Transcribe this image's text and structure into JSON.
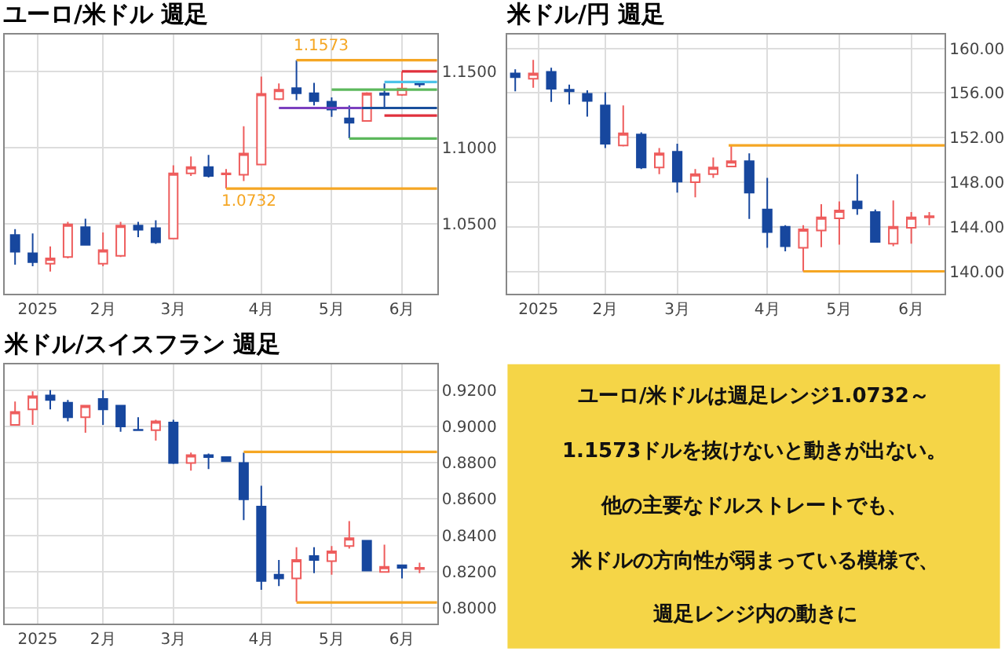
{
  "chart_data": [
    {
      "type": "candlestick",
      "title": "ユーロ/米ドル 週足",
      "x": [
        "2024-12-23",
        "2024-12-30",
        "2025-01-06",
        "2025-01-13",
        "2025-01-20",
        "2025-01-27",
        "2025-02-03",
        "2025-02-10",
        "2025-02-17",
        "2025-02-24",
        "2025-03-03",
        "2025-03-10",
        "2025-03-17",
        "2025-03-24",
        "2025-03-31",
        "2025-04-07",
        "2025-04-14",
        "2025-04-21",
        "2025-04-28",
        "2025-05-05",
        "2025-05-12",
        "2025-05-19",
        "2025-05-26",
        "2025-06-02"
      ],
      "ohlc": [
        [
          1.0428,
          1.0466,
          1.0233,
          1.0318
        ],
        [
          1.0308,
          1.0438,
          1.0223,
          1.025
        ],
        [
          1.024,
          1.0353,
          1.0188,
          1.0274
        ],
        [
          1.0284,
          1.0514,
          1.0274,
          1.0497
        ],
        [
          1.0479,
          1.0534,
          1.036,
          1.0363
        ],
        [
          1.024,
          1.0445,
          1.0223,
          1.0329
        ],
        [
          1.0291,
          1.0514,
          1.0284,
          1.049
        ],
        [
          1.049,
          1.0514,
          1.0414,
          1.0462
        ],
        [
          1.0473,
          1.0524,
          1.037,
          1.038
        ],
        [
          1.0404,
          1.0884,
          1.04,
          1.0832
        ],
        [
          1.0832,
          1.0942,
          1.0815,
          1.0873
        ],
        [
          1.0873,
          1.0952,
          1.0805,
          1.0815
        ],
        [
          1.0825,
          1.086,
          1.0732,
          1.0832
        ],
        [
          1.0822,
          1.114,
          1.0781,
          1.0962
        ],
        [
          1.089,
          1.1466,
          1.0885,
          1.1353
        ],
        [
          1.1318,
          1.1421,
          1.1312,
          1.138
        ],
        [
          1.139,
          1.1573,
          1.1312,
          1.1356
        ],
        [
          1.1356,
          1.1425,
          1.1277,
          1.1305
        ],
        [
          1.1301,
          1.1329,
          1.1202,
          1.125
        ],
        [
          1.1192,
          1.1277,
          1.1062,
          1.1164
        ],
        [
          1.1175,
          1.1363,
          1.117,
          1.1356
        ],
        [
          1.1356,
          1.1421,
          1.126,
          1.1346
        ],
        [
          1.1346,
          1.15,
          1.134,
          1.1387
        ],
        [
          1.1421,
          1.1432,
          1.1397,
          1.1414
        ]
      ],
      "series": [
        {
          "type": "line",
          "color": "#f5a623",
          "x": [
            "2025-04-14",
            "2025-06-09"
          ],
          "values": [
            1.1573,
            1.1573
          ]
        },
        {
          "type": "line",
          "color": "#f5a623",
          "x": [
            "2025-03-17",
            "2025-06-09"
          ],
          "values": [
            1.0732,
            1.0732
          ]
        },
        {
          "type": "line",
          "color": "#7b3fbf",
          "x": [
            "2025-04-07",
            "2025-05-10"
          ],
          "values": [
            1.126,
            1.126
          ]
        },
        {
          "type": "line",
          "color": "#1a4f9c",
          "x": [
            "2025-05-10",
            "2025-06-09"
          ],
          "values": [
            1.126,
            1.126
          ]
        },
        {
          "type": "line",
          "color": "#5cb85c",
          "x": [
            "2025-04-28",
            "2025-06-09"
          ],
          "values": [
            1.138,
            1.138
          ]
        },
        {
          "type": "line",
          "color": "#5cb85c",
          "x": [
            "2025-05-05",
            "2025-06-09"
          ],
          "values": [
            1.106,
            1.106
          ]
        },
        {
          "type": "line",
          "color": "#e0303c",
          "x": [
            "2025-05-26",
            "2025-06-09"
          ],
          "values": [
            1.15,
            1.15
          ]
        },
        {
          "type": "line",
          "color": "#e0303c",
          "x": [
            "2025-05-19",
            "2025-06-09"
          ],
          "values": [
            1.121,
            1.121
          ]
        },
        {
          "type": "line",
          "color": "#4dc3e8",
          "x": [
            "2025-05-19",
            "2025-06-09"
          ],
          "values": [
            1.143,
            1.143
          ]
        }
      ],
      "annotations": [
        {
          "text": "1.1573",
          "x": "2025-04-24",
          "y": 1.1573
        },
        {
          "text": "1.0732",
          "x": "2025-03-26",
          "y": 1.0732
        }
      ],
      "xlim": [
        "2024-12-19",
        "2025-06-09"
      ],
      "xticks": [
        {
          "value": "2025-01-01",
          "label": "2025"
        },
        {
          "value": "2025-01-27",
          "label": "2月"
        },
        {
          "value": "2025-02-24",
          "label": "3月"
        },
        {
          "value": "2025-03-31",
          "label": "4月"
        },
        {
          "value": "2025-04-28",
          "label": "5月"
        },
        {
          "value": "2025-05-26",
          "label": "6月"
        }
      ],
      "ylim": [
        1.0045,
        1.174
      ],
      "yticks": [
        {
          "value": 1.05,
          "label": "1.0500"
        },
        {
          "value": 1.1,
          "label": "1.1000"
        },
        {
          "value": 1.15,
          "label": "1.1500"
        }
      ],
      "grid": true
    },
    {
      "type": "candlestick",
      "title": "米ドル/円 週足",
      "x": [
        "2024-12-23",
        "2024-12-30",
        "2025-01-06",
        "2025-01-13",
        "2025-01-20",
        "2025-01-27",
        "2025-02-03",
        "2025-02-10",
        "2025-02-17",
        "2025-02-24",
        "2025-03-03",
        "2025-03-10",
        "2025-03-17",
        "2025-03-24",
        "2025-03-31",
        "2025-04-07",
        "2025-04-14",
        "2025-04-21",
        "2025-04-28",
        "2025-05-05",
        "2025-05-12",
        "2025-05-19",
        "2025-05-26",
        "2025-06-02"
      ],
      "ohlc": [
        [
          157.74,
          158.12,
          156.14,
          157.41
        ],
        [
          157.27,
          158.96,
          156.47,
          157.74
        ],
        [
          157.88,
          158.26,
          155.2,
          156.38
        ],
        [
          156.28,
          156.75,
          154.96,
          156.14
        ],
        [
          155.91,
          156.24,
          153.88,
          155.29
        ],
        [
          154.87,
          156.05,
          151.06,
          151.44
        ],
        [
          151.29,
          154.87,
          151.2,
          152.38
        ],
        [
          152.28,
          152.47,
          149.18,
          149.32
        ],
        [
          149.32,
          151.06,
          148.71,
          150.59
        ],
        [
          150.73,
          151.44,
          147.06,
          148.05
        ],
        [
          148.0,
          149.18,
          146.64,
          148.71
        ],
        [
          148.71,
          150.21,
          148.38,
          149.32
        ],
        [
          149.41,
          151.3,
          149.4,
          149.88
        ],
        [
          149.88,
          150.59,
          144.71,
          147.06
        ],
        [
          145.55,
          148.38,
          142.12,
          143.53
        ],
        [
          144.0,
          144.14,
          141.79,
          142.26
        ],
        [
          142.12,
          144.14,
          140.0,
          143.76
        ],
        [
          143.67,
          146.02,
          142.16,
          144.85
        ],
        [
          144.75,
          146.26,
          142.4,
          145.46
        ],
        [
          146.26,
          148.71,
          145.08,
          145.65
        ],
        [
          145.32,
          145.55,
          142.6,
          142.64
        ],
        [
          142.49,
          146.35,
          142.26,
          144.0
        ],
        [
          143.91,
          145.32,
          142.49,
          144.85
        ],
        [
          144.85,
          145.32,
          144.14,
          144.94
        ]
      ],
      "series": [
        {
          "type": "line",
          "color": "#f5a623",
          "x": [
            "2025-03-16",
            "2025-06-08"
          ],
          "values": [
            151.3,
            151.3
          ]
        },
        {
          "type": "line",
          "color": "#f5a623",
          "x": [
            "2025-04-14",
            "2025-06-08"
          ],
          "values": [
            140.0,
            140.0
          ]
        }
      ],
      "xlim": [
        "2024-12-20",
        "2025-06-08"
      ],
      "xticks": [
        {
          "value": "2025-01-01",
          "label": "2025"
        },
        {
          "value": "2025-01-27",
          "label": "2月"
        },
        {
          "value": "2025-02-24",
          "label": "3月"
        },
        {
          "value": "2025-03-31",
          "label": "4月"
        },
        {
          "value": "2025-04-28",
          "label": "5月"
        },
        {
          "value": "2025-05-26",
          "label": "6月"
        }
      ],
      "ylim": [
        138.02,
        161.22
      ],
      "yticks": [
        {
          "value": 140,
          "label": "140.00"
        },
        {
          "value": 144,
          "label": "144.00"
        },
        {
          "value": 148,
          "label": "148.00"
        },
        {
          "value": 152,
          "label": "152.00"
        },
        {
          "value": 156,
          "label": "156.00"
        },
        {
          "value": 160,
          "label": "160.00"
        }
      ],
      "grid": true
    },
    {
      "type": "candlestick",
      "title": "米ドル/スイスフラン 週足",
      "x": [
        "2024-12-23",
        "2024-12-30",
        "2025-01-06",
        "2025-01-13",
        "2025-01-20",
        "2025-01-27",
        "2025-02-03",
        "2025-02-10",
        "2025-02-17",
        "2025-02-24",
        "2025-03-03",
        "2025-03-10",
        "2025-03-17",
        "2025-03-24",
        "2025-03-31",
        "2025-04-07",
        "2025-04-14",
        "2025-04-21",
        "2025-04-28",
        "2025-05-05",
        "2025-05-12",
        "2025-05-19",
        "2025-05-26",
        "2025-06-02"
      ],
      "ohlc": [
        [
          0.9008,
          0.9137,
          0.9005,
          0.908
        ],
        [
          0.9094,
          0.9194,
          0.9008,
          0.9166
        ],
        [
          0.9171,
          0.92,
          0.9094,
          0.9146
        ],
        [
          0.9131,
          0.9146,
          0.9028,
          0.9051
        ],
        [
          0.9051,
          0.9114,
          0.8965,
          0.9114
        ],
        [
          0.9151,
          0.92,
          0.9008,
          0.9094
        ],
        [
          0.9114,
          0.9114,
          0.8971,
          0.9
        ],
        [
          0.8982,
          0.9051,
          0.8979,
          0.8979
        ],
        [
          0.8979,
          0.9037,
          0.8922,
          0.9028
        ],
        [
          0.9022,
          0.9037,
          0.8793,
          0.8799
        ],
        [
          0.8799,
          0.8856,
          0.8756,
          0.8842
        ],
        [
          0.8842,
          0.8851,
          0.8765,
          0.8831
        ],
        [
          0.8831,
          0.8836,
          0.8806,
          0.8808
        ],
        [
          0.8799,
          0.8856,
          0.8484,
          0.8599
        ],
        [
          0.8558,
          0.8673,
          0.81,
          0.8149
        ],
        [
          0.8183,
          0.8264,
          0.812,
          0.8163
        ],
        [
          0.8163,
          0.8335,
          0.8034,
          0.8264
        ],
        [
          0.8286,
          0.8335,
          0.8192,
          0.8264
        ],
        [
          0.8258,
          0.8341,
          0.8183,
          0.8312
        ],
        [
          0.8341,
          0.8478,
          0.8327,
          0.8384
        ],
        [
          0.837,
          0.8372,
          0.8204,
          0.8206
        ],
        [
          0.8198,
          0.8349,
          0.8196,
          0.8226
        ],
        [
          0.8235,
          0.8237,
          0.8163,
          0.8221
        ],
        [
          0.8215,
          0.8249,
          0.8192,
          0.8221
        ]
      ],
      "series": [
        {
          "type": "line",
          "color": "#f5a623",
          "x": [
            "2025-03-24",
            "2025-06-09"
          ],
          "values": [
            0.886,
            0.886
          ]
        },
        {
          "type": "line",
          "color": "#f5a623",
          "x": [
            "2025-04-14",
            "2025-06-09"
          ],
          "values": [
            0.803,
            0.803
          ]
        }
      ],
      "xlim": [
        "2024-12-19",
        "2025-06-09"
      ],
      "xticks": [
        {
          "value": "2025-01-01",
          "label": "2025"
        },
        {
          "value": "2025-01-27",
          "label": "2月"
        },
        {
          "value": "2025-02-24",
          "label": "3月"
        },
        {
          "value": "2025-03-31",
          "label": "4月"
        },
        {
          "value": "2025-04-28",
          "label": "5月"
        },
        {
          "value": "2025-05-26",
          "label": "6月"
        }
      ],
      "ylim": [
        0.7914,
        0.9343
      ],
      "yticks": [
        {
          "value": 0.8,
          "label": "0.8000"
        },
        {
          "value": 0.82,
          "label": "0.8200"
        },
        {
          "value": 0.84,
          "label": "0.8400"
        },
        {
          "value": 0.86,
          "label": "0.8600"
        },
        {
          "value": 0.88,
          "label": "0.8800"
        },
        {
          "value": 0.9,
          "label": "0.9000"
        },
        {
          "value": 0.92,
          "label": "0.9200"
        }
      ],
      "grid": true
    },
    {
      "type": "other",
      "annotations": [
        "ユーロ/米ドルは週足レンジ1.0732～",
        "1.1573ドルを抜けないと動きが出ない。",
        "他の主要なドルストレートでも、",
        "米ドルの方向性が弱まっている模様で、",
        "週足レンジ内の動きに"
      ]
    }
  ]
}
